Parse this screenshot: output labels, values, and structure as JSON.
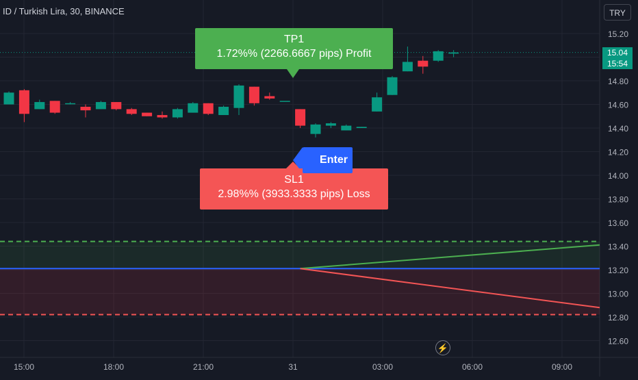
{
  "header": {
    "symbol": "ID / Turkish Lira, 30, BINANCE",
    "currency_button": "TRY"
  },
  "price_badge": {
    "price": "15.04",
    "countdown": "15:54"
  },
  "trade_labels": {
    "tp": {
      "title": "TP1",
      "detail": "1.72%% (2266.6667 pips) Profit"
    },
    "entry": "Enter",
    "sl": {
      "title": "SL1",
      "detail": "2.98%% (3933.3333 pips) Loss"
    }
  },
  "colors": {
    "background": "#161a25",
    "bull": "#089981",
    "bear": "#f23645",
    "tp": "#4caf50",
    "sl": "#f45555",
    "entry": "#2962ff"
  },
  "icons": {
    "replay": "lightning-icon"
  },
  "chart_data": {
    "type": "candlestick",
    "y_ticks": [
      "15.20",
      "15.00",
      "14.80",
      "14.60",
      "14.40",
      "14.20",
      "14.00",
      "13.80",
      "13.60",
      "13.40",
      "13.20",
      "13.00",
      "12.80",
      "12.60"
    ],
    "x_ticks": [
      "15:00",
      "18:00",
      "21:00",
      "31",
      "03:00",
      "06:00",
      "09:00"
    ],
    "ylim": [
      12.51,
      15.31
    ],
    "candles": [
      {
        "o": 14.6,
        "h": 14.71,
        "l": 14.6,
        "c": 14.7
      },
      {
        "o": 14.72,
        "h": 14.73,
        "l": 14.45,
        "c": 14.52
      },
      {
        "o": 14.56,
        "h": 14.64,
        "l": 14.56,
        "c": 14.62
      },
      {
        "o": 14.63,
        "h": 14.63,
        "l": 14.52,
        "c": 14.53
      },
      {
        "o": 14.61,
        "h": 14.62,
        "l": 14.6,
        "c": 14.61
      },
      {
        "o": 14.58,
        "h": 14.6,
        "l": 14.49,
        "c": 14.55
      },
      {
        "o": 14.56,
        "h": 14.63,
        "l": 14.56,
        "c": 14.62
      },
      {
        "o": 14.62,
        "h": 14.62,
        "l": 14.55,
        "c": 14.56
      },
      {
        "o": 14.56,
        "h": 14.57,
        "l": 14.51,
        "c": 14.52
      },
      {
        "o": 14.53,
        "h": 14.53,
        "l": 14.5,
        "c": 14.5
      },
      {
        "o": 14.51,
        "h": 14.54,
        "l": 14.48,
        "c": 14.49
      },
      {
        "o": 14.49,
        "h": 14.57,
        "l": 14.48,
        "c": 14.56
      },
      {
        "o": 14.53,
        "h": 14.62,
        "l": 14.53,
        "c": 14.61
      },
      {
        "o": 14.61,
        "h": 14.61,
        "l": 14.51,
        "c": 14.52
      },
      {
        "o": 14.51,
        "h": 14.59,
        "l": 14.51,
        "c": 14.58
      },
      {
        "o": 14.57,
        "h": 14.77,
        "l": 14.51,
        "c": 14.76
      },
      {
        "o": 14.75,
        "h": 14.75,
        "l": 14.59,
        "c": 14.61
      },
      {
        "o": 14.67,
        "h": 14.7,
        "l": 14.64,
        "c": 14.65
      },
      {
        "o": 14.63,
        "h": 14.63,
        "l": 14.63,
        "c": 14.63
      },
      {
        "o": 14.56,
        "h": 14.56,
        "l": 14.4,
        "c": 14.42
      },
      {
        "o": 14.35,
        "h": 14.44,
        "l": 14.32,
        "c": 14.43
      },
      {
        "o": 14.42,
        "h": 14.45,
        "l": 14.4,
        "c": 14.44
      },
      {
        "o": 14.38,
        "h": 14.43,
        "l": 14.38,
        "c": 14.42
      },
      {
        "o": 14.4,
        "h": 14.41,
        "l": 14.4,
        "c": 14.41
      },
      {
        "o": 14.54,
        "h": 14.7,
        "l": 14.54,
        "c": 14.66
      },
      {
        "o": 14.68,
        "h": 14.84,
        "l": 14.68,
        "c": 14.83
      },
      {
        "o": 14.88,
        "h": 15.09,
        "l": 14.88,
        "c": 14.96
      },
      {
        "o": 14.97,
        "h": 15.01,
        "l": 14.86,
        "c": 14.92
      },
      {
        "o": 14.97,
        "h": 15.06,
        "l": 14.96,
        "c": 15.05
      },
      {
        "o": 15.03,
        "h": 15.06,
        "l": 15.0,
        "c": 15.04
      }
    ],
    "levels": {
      "take_profit": 13.44,
      "entry": 13.21,
      "stop_loss": 12.82,
      "last_price": 15.04
    },
    "projection": {
      "start_candle": 19,
      "tp_end": 13.41,
      "sl_end": 12.88
    }
  }
}
